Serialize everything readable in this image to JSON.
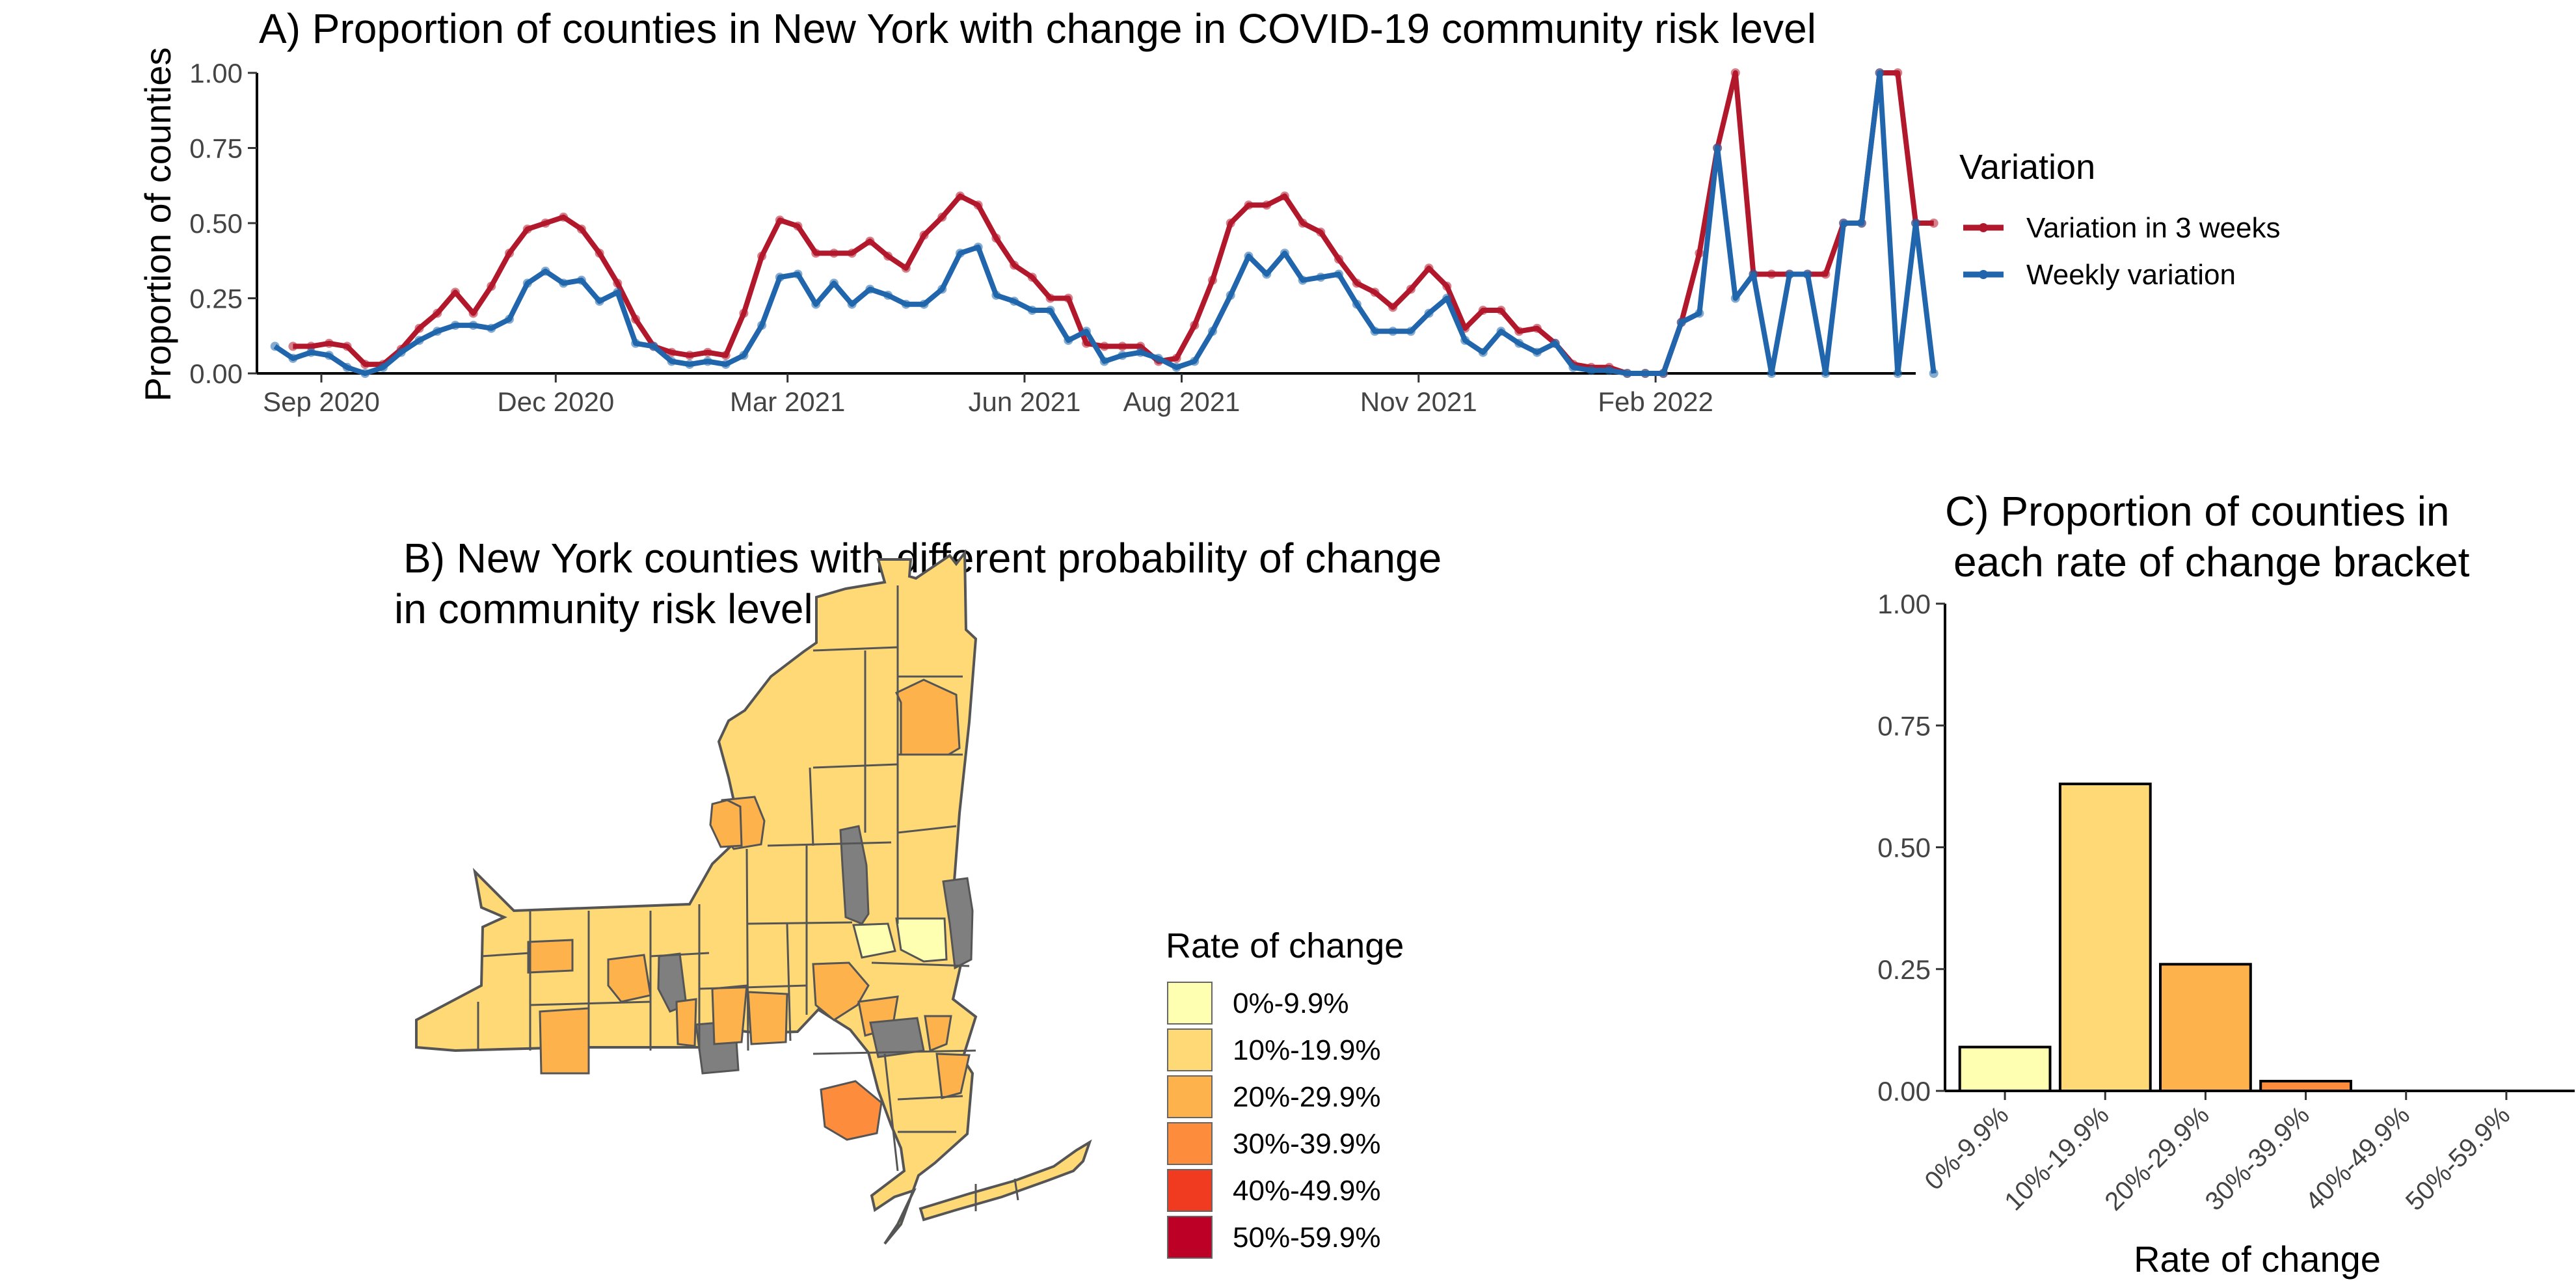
{
  "panel_a": {
    "title": "A) Proportion of counties in New York with change in COVID-19 community risk level",
    "legend_title": "Variation",
    "chart_data": {
      "type": "line",
      "ylabel": "Proportion of counties",
      "xlabel": "",
      "ylim": [
        0,
        1
      ],
      "y_ticks": [
        "0.00",
        "0.25",
        "0.50",
        "0.75",
        "1.00"
      ],
      "x_range": [
        "2020-08-07",
        "2022-05-13"
      ],
      "x_ticks": [
        {
          "label": "Sep 2020",
          "date": "2020-09-01"
        },
        {
          "label": "Dec 2020",
          "date": "2020-12-01"
        },
        {
          "label": "Mar 2021",
          "date": "2021-03-01"
        },
        {
          "label": "Jun 2021",
          "date": "2021-06-01"
        },
        {
          "label": "Aug 2021",
          "date": "2021-08-01"
        },
        {
          "label": "Nov 2021",
          "date": "2021-11-01"
        },
        {
          "label": "Feb 2022",
          "date": "2022-02-01"
        }
      ],
      "grid": false,
      "legend_placement": "right",
      "series": [
        {
          "name": "Variation in 3 weeks",
          "color": "#b2182b",
          "start": "2020-08-21",
          "step_days": 7,
          "values": [
            0.09,
            0.09,
            0.1,
            0.09,
            0.03,
            0.03,
            0.08,
            0.15,
            0.2,
            0.27,
            0.2,
            0.29,
            0.4,
            0.48,
            0.5,
            0.52,
            0.48,
            0.4,
            0.3,
            0.18,
            0.09,
            0.07,
            0.06,
            0.07,
            0.06,
            0.2,
            0.39,
            0.51,
            0.49,
            0.4,
            0.4,
            0.4,
            0.44,
            0.39,
            0.35,
            0.46,
            0.52,
            0.59,
            0.56,
            0.45,
            0.36,
            0.32,
            0.25,
            0.25,
            0.1,
            0.09,
            0.09,
            0.09,
            0.04,
            0.05,
            0.16,
            0.31,
            0.5,
            0.56,
            0.56,
            0.59,
            0.5,
            0.47,
            0.38,
            0.3,
            0.27,
            0.22,
            0.28,
            0.35,
            0.29,
            0.15,
            0.21,
            0.21,
            0.14,
            0.15,
            0.1,
            0.03,
            0.02,
            0.02,
            0.0,
            0.0,
            0.0,
            0.17,
            0.4,
            0.75,
            1.0,
            0.33,
            0.33,
            0.33,
            0.33,
            0.33,
            0.5,
            0.5,
            1.0,
            1.0,
            0.5,
            0.5
          ]
        },
        {
          "name": "Weekly variation",
          "color": "#2166ac",
          "start": "2020-08-14",
          "step_days": 7,
          "values": [
            0.09,
            0.05,
            0.07,
            0.06,
            0.02,
            0.0,
            0.02,
            0.07,
            0.11,
            0.14,
            0.16,
            0.16,
            0.15,
            0.18,
            0.3,
            0.34,
            0.3,
            0.31,
            0.24,
            0.27,
            0.1,
            0.09,
            0.04,
            0.03,
            0.04,
            0.03,
            0.06,
            0.16,
            0.32,
            0.33,
            0.23,
            0.3,
            0.23,
            0.28,
            0.26,
            0.23,
            0.23,
            0.28,
            0.4,
            0.42,
            0.26,
            0.24,
            0.21,
            0.21,
            0.11,
            0.14,
            0.04,
            0.06,
            0.07,
            0.05,
            0.02,
            0.04,
            0.14,
            0.26,
            0.39,
            0.33,
            0.4,
            0.31,
            0.32,
            0.33,
            0.23,
            0.14,
            0.14,
            0.14,
            0.2,
            0.25,
            0.11,
            0.07,
            0.14,
            0.1,
            0.07,
            0.1,
            0.02,
            0.01,
            0.01,
            0.0,
            0.0,
            0.0,
            0.17,
            0.2,
            0.75,
            0.25,
            0.33,
            0.0,
            0.33,
            0.33,
            0.0,
            0.5,
            0.5,
            1.0,
            0.0,
            0.5,
            0.0
          ]
        }
      ]
    }
  },
  "panel_b": {
    "title_line1": "B)  New York counties with different probability of change",
    "title_line2": "in community risk level",
    "legend_title": "Rate of change",
    "legend": [
      {
        "label": "0%-9.9%",
        "color": "#ffffb2"
      },
      {
        "label": "10%-19.9%",
        "color": "#fed976"
      },
      {
        "label": "20%-29.9%",
        "color": "#feb24c"
      },
      {
        "label": "30%-39.9%",
        "color": "#fd8d3c"
      },
      {
        "label": "40%-49.9%",
        "color": "#f03b20"
      },
      {
        "label": "50%-59.9%",
        "color": "#bd0026"
      }
    ],
    "no_data_color": "#7f7f7f"
  },
  "panel_c": {
    "title_line1": "C) Proportion of counties in",
    "title_line2": "each rate of change bracket",
    "chart_data": {
      "type": "bar",
      "xlabel": "Rate of change",
      "ylabel": "",
      "ylim": [
        0,
        1
      ],
      "y_ticks": [
        "0.00",
        "0.25",
        "0.50",
        "0.75",
        "1.00"
      ],
      "categories": [
        "0%-9.9%",
        "10%-19.9%",
        "20%-29.9%",
        "30%-39.9%",
        "40%-49.9%",
        "50%-59.9%"
      ],
      "values": [
        0.09,
        0.63,
        0.26,
        0.02,
        0.0,
        0.0
      ],
      "colors": [
        "#ffffb2",
        "#fed976",
        "#feb24c",
        "#fd8d3c",
        "#f03b20",
        "#bd0026"
      ],
      "grid": false
    }
  }
}
